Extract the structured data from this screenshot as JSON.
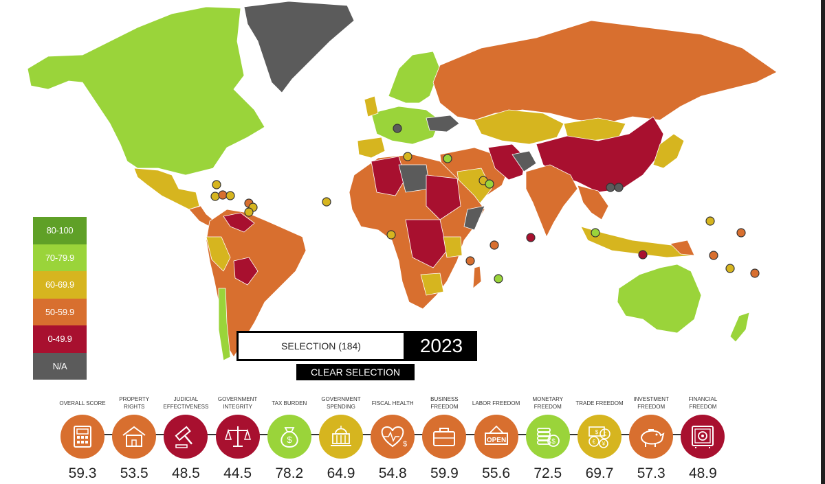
{
  "legend": [
    {
      "label": "80-100",
      "color": "#5fa027"
    },
    {
      "label": "70-79.9",
      "color": "#9ad43a"
    },
    {
      "label": "60-69.9",
      "color": "#d6b51f"
    },
    {
      "label": "50-59.9",
      "color": "#d86f2f"
    },
    {
      "label": "0-49.9",
      "color": "#a8102f"
    },
    {
      "label": "N/A",
      "color": "#5b5b5b"
    }
  ],
  "selection": {
    "label": "SELECTION (184)",
    "year": "2023",
    "clear_label": "CLEAR SELECTION"
  },
  "indicators": [
    {
      "label": "OVERALL SCORE",
      "value": "59.3",
      "color": "#d86f2f",
      "icon": "calculator-icon"
    },
    {
      "label": "PROPERTY RIGHTS",
      "value": "53.5",
      "color": "#d86f2f",
      "icon": "house-icon"
    },
    {
      "label": "JUDICIAL EFFECTIVENESS",
      "value": "48.5",
      "color": "#a8102f",
      "icon": "gavel-icon"
    },
    {
      "label": "GOVERNMENT INTEGRITY",
      "value": "44.5",
      "color": "#a8102f",
      "icon": "scales-icon"
    },
    {
      "label": "TAX BURDEN",
      "value": "78.2",
      "color": "#9ad43a",
      "icon": "money-bag-icon"
    },
    {
      "label": "GOVERNMENT SPENDING",
      "value": "64.9",
      "color": "#d6b51f",
      "icon": "capitol-icon"
    },
    {
      "label": "FISCAL HEALTH",
      "value": "54.8",
      "color": "#d86f2f",
      "icon": "heartbeat-icon"
    },
    {
      "label": "BUSINESS FREEDOM",
      "value": "59.9",
      "color": "#d86f2f",
      "icon": "briefcase-icon"
    },
    {
      "label": "LABOR FREEDOM",
      "value": "55.6",
      "color": "#d86f2f",
      "icon": "open-sign-icon"
    },
    {
      "label": "MONETARY FREEDOM",
      "value": "72.5",
      "color": "#9ad43a",
      "icon": "coins-icon"
    },
    {
      "label": "TRADE FREEDOM",
      "value": "69.7",
      "color": "#d6b51f",
      "icon": "currency-icon"
    },
    {
      "label": "INVESTMENT FREEDOM",
      "value": "57.3",
      "color": "#d86f2f",
      "icon": "piggy-bank-icon"
    },
    {
      "label": "FINANCIAL FREEDOM",
      "value": "48.9",
      "color": "#a8102f",
      "icon": "safe-icon"
    }
  ]
}
